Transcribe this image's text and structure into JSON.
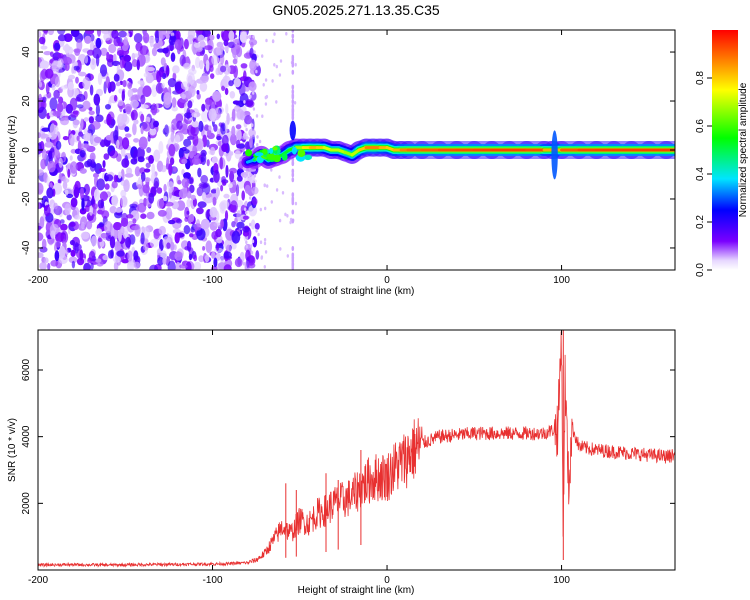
{
  "figure": {
    "title": "GN05.2025.271.13.35.C35"
  },
  "chart_data": [
    {
      "type": "heatmap",
      "title": "GN05.2025.271.13.35.C35",
      "xlabel": "Height of straight line (km)",
      "ylabel": "Frequency (Hz)",
      "xlim": [
        -200,
        165
      ],
      "ylim": [
        -49,
        49
      ],
      "x_ticks": [
        -200,
        -100,
        0,
        100
      ],
      "x_tick_labels": [
        "-200",
        "-100",
        "0",
        "100"
      ],
      "y_ticks": [
        -40,
        -20,
        0,
        20,
        40
      ],
      "y_tick_labels": [
        "-40",
        "-20",
        "0",
        "20",
        "40"
      ],
      "colorbar": {
        "label": "Normalized spectral amplitude",
        "range": [
          0.0,
          1.0
        ],
        "ticks": [
          0.0,
          0.2,
          0.4,
          0.6,
          0.8
        ],
        "tick_labels": [
          "0.0",
          "0.2",
          "0.4",
          "0.6",
          "0.8"
        ],
        "colormap": [
          "#ffffff",
          "#7a00ff",
          "#0000ff",
          "#00ffff",
          "#00ff00",
          "#ffff00",
          "#ff0000"
        ]
      },
      "noise_region": {
        "x_start": -200,
        "x_end": -80,
        "mean_amplitude": 0.18
      },
      "band_trace": [
        {
          "x": -80,
          "f": -5,
          "amp": 0.25
        },
        {
          "x": -76,
          "f": -4,
          "amp": 0.45
        },
        {
          "x": -72,
          "f": -2,
          "amp": 0.55
        },
        {
          "x": -68,
          "f": -4,
          "amp": 0.5
        },
        {
          "x": -64,
          "f": -3,
          "amp": 0.55
        },
        {
          "x": -60,
          "f": -2,
          "amp": 0.5
        },
        {
          "x": -56,
          "f": 0,
          "amp": 0.55
        },
        {
          "x": -52,
          "f": 1,
          "amp": 0.6
        },
        {
          "x": -48,
          "f": 1,
          "amp": 0.75
        },
        {
          "x": -44,
          "f": 1,
          "amp": 0.8
        },
        {
          "x": -40,
          "f": 1,
          "amp": 0.85
        },
        {
          "x": -36,
          "f": 1,
          "amp": 0.75
        },
        {
          "x": -32,
          "f": 0,
          "amp": 0.7
        },
        {
          "x": -28,
          "f": 0,
          "amp": 0.7
        },
        {
          "x": -24,
          "f": -1,
          "amp": 0.7
        },
        {
          "x": -20,
          "f": -2,
          "amp": 0.65
        },
        {
          "x": -16,
          "f": 0,
          "amp": 0.75
        },
        {
          "x": -12,
          "f": 1,
          "amp": 0.85
        },
        {
          "x": -8,
          "f": 1,
          "amp": 0.9
        },
        {
          "x": -4,
          "f": 1,
          "amp": 0.85
        },
        {
          "x": 0,
          "f": 1,
          "amp": 0.8
        },
        {
          "x": 4,
          "f": 0,
          "amp": 0.8
        },
        {
          "x": 8,
          "f": 0,
          "amp": 0.85
        },
        {
          "x": 12,
          "f": 0,
          "amp": 0.9
        },
        {
          "x": 20,
          "f": 0,
          "amp": 0.9
        },
        {
          "x": 30,
          "f": 0,
          "amp": 0.92
        },
        {
          "x": 40,
          "f": 0,
          "amp": 0.93
        },
        {
          "x": 50,
          "f": 0,
          "amp": 0.93
        },
        {
          "x": 60,
          "f": 0,
          "amp": 0.94
        },
        {
          "x": 70,
          "f": 0,
          "amp": 0.94
        },
        {
          "x": 80,
          "f": 0,
          "amp": 0.94
        },
        {
          "x": 90,
          "f": 0,
          "amp": 0.92
        },
        {
          "x": 95,
          "f": 0,
          "amp": 0.75
        },
        {
          "x": 100,
          "f": 0,
          "amp": 0.9
        },
        {
          "x": 110,
          "f": 0,
          "amp": 0.93
        },
        {
          "x": 120,
          "f": 0,
          "amp": 0.94
        },
        {
          "x": 130,
          "f": 0,
          "amp": 0.94
        },
        {
          "x": 140,
          "f": 0,
          "amp": 0.94
        },
        {
          "x": 150,
          "f": 0,
          "amp": 0.94
        },
        {
          "x": 160,
          "f": 0,
          "amp": 0.94
        },
        {
          "x": 165,
          "f": 0,
          "amp": 0.94
        }
      ],
      "features": [
        {
          "x": -54,
          "f_low": 4,
          "f_high": 12,
          "amp": 0.25
        },
        {
          "x": 96,
          "f_low": -12,
          "f_high": 8,
          "amp": 0.3
        }
      ]
    },
    {
      "type": "line",
      "xlabel": "Height of straight line (km)",
      "ylabel": "SNR (10 * v/v)",
      "xlim": [
        -200,
        165
      ],
      "ylim": [
        0,
        7200
      ],
      "x_ticks": [
        -200,
        -100,
        0,
        100
      ],
      "x_tick_labels": [
        "-200",
        "-100",
        "0",
        "100"
      ],
      "y_ticks": [
        2000,
        4000,
        6000
      ],
      "y_tick_labels": [
        "2000",
        "4000",
        "6000"
      ],
      "series": [
        {
          "name": "SNR",
          "color": "#e83030",
          "x": [
            -200,
            -180,
            -160,
            -140,
            -120,
            -100,
            -90,
            -80,
            -75,
            -70,
            -65,
            -60,
            -55,
            -50,
            -45,
            -40,
            -35,
            -30,
            -25,
            -20,
            -15,
            -10,
            -5,
            0,
            5,
            10,
            15,
            20,
            25,
            30,
            40,
            50,
            60,
            70,
            80,
            90,
            95,
            98,
            100,
            101,
            102,
            104,
            106,
            110,
            120,
            130,
            140,
            150,
            160,
            165
          ],
          "values": [
            150,
            160,
            150,
            160,
            170,
            180,
            190,
            220,
            300,
            500,
            900,
            1300,
            1100,
            1500,
            1400,
            1700,
            1800,
            2000,
            2100,
            2200,
            2500,
            2700,
            2800,
            2800,
            3100,
            3300,
            3600,
            3800,
            3900,
            4000,
            4050,
            4100,
            4100,
            4100,
            4100,
            4100,
            4200,
            4300,
            7100,
            1000,
            5800,
            2500,
            4300,
            3700,
            3600,
            3550,
            3500,
            3450,
            3400,
            3450
          ],
          "spikes": [
            {
              "x": -58,
              "value": 2600
            },
            {
              "x": -52,
              "value": 2400
            },
            {
              "x": -35,
              "value": 2900
            },
            {
              "x": -15,
              "value": 3600
            },
            {
              "x": -28,
              "value": 2700
            },
            {
              "x": 101,
              "value": 7200
            }
          ]
        }
      ]
    }
  ]
}
